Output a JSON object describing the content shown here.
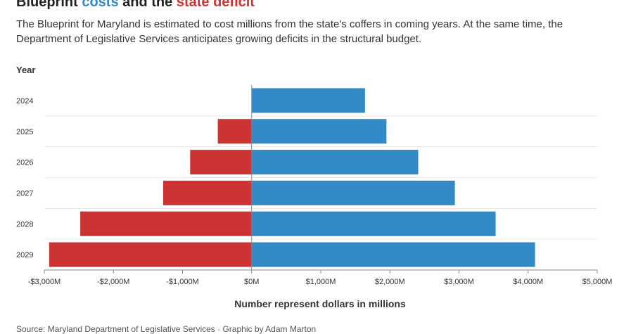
{
  "header": {
    "title_part1": "Blueprint ",
    "title_costs": "costs",
    "title_part2": " and the ",
    "title_deficit": "state deficit",
    "subtitle": "The Blueprint for Maryland is estimated to cost millions from the state's coffers in coming years. At the same time, the Department of Legislative Services anticipates growing deficits in the structural budget."
  },
  "footer": {
    "source": "Source: Maryland Department of Legislative Services · Graphic by Adam Marton"
  },
  "colors": {
    "costs": "#3189c6",
    "deficit": "#cc3333"
  },
  "chart_data": {
    "type": "bar",
    "orientation": "horizontal",
    "ylabel": "Year",
    "xlabel": "Number represent dollars in millions",
    "categories": [
      "2024",
      "2025",
      "2026",
      "2027",
      "2028",
      "2029"
    ],
    "series": [
      {
        "values": [
          0,
          -490,
          -890,
          -1280,
          -2480,
          -2930
        ]
      },
      {
        "values": [
          1640,
          1950,
          2410,
          2940,
          3530,
          4100
        ]
      }
    ],
    "xlim": [
      -3000,
      5000
    ],
    "xticks": [
      -3000,
      -2000,
      -1000,
      0,
      1000,
      2000,
      3000,
      4000,
      5000
    ],
    "xtick_labels": [
      "-$3,000M",
      "-$2,000M",
      "-$1,000M",
      "$0M",
      "$1,000M",
      "$2,000M",
      "$3,000M",
      "$4,000M",
      "$5,000M"
    ],
    "grid": true,
    "legend": "none"
  }
}
